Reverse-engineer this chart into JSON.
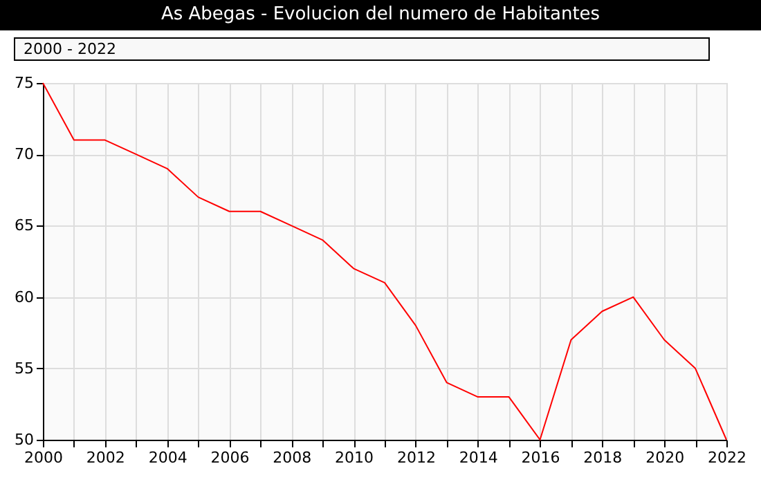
{
  "chart_data": {
    "type": "line",
    "title": "As Abegas - Evolucion del numero de Habitantes",
    "subtitle": "2000 - 2022",
    "x": [
      2000,
      2001,
      2002,
      2003,
      2004,
      2005,
      2006,
      2007,
      2008,
      2009,
      2010,
      2011,
      2012,
      2013,
      2014,
      2015,
      2016,
      2017,
      2018,
      2019,
      2020,
      2021,
      2022
    ],
    "series": [
      {
        "color": "#ff0000",
        "values": [
          75,
          71,
          71,
          70,
          69,
          67,
          66,
          66,
          65,
          64,
          62,
          61,
          58,
          54,
          53,
          53,
          50,
          57,
          59,
          60,
          57,
          55,
          50
        ]
      }
    ],
    "xlim": [
      2000,
      2022
    ],
    "xticks": [
      2000,
      {
        "value": 2001,
        "label": null
      },
      2002,
      {
        "value": 2003,
        "label": null
      },
      2004,
      {
        "value": 2005,
        "label": null
      },
      2006,
      {
        "value": 2007,
        "label": null
      },
      2008,
      {
        "value": 2009,
        "label": null
      },
      2010,
      {
        "value": 2011,
        "label": null
      },
      2012,
      {
        "value": 2013,
        "label": null
      },
      2014,
      {
        "value": 2015,
        "label": null
      },
      2016,
      {
        "value": 2017,
        "label": null
      },
      2018,
      {
        "value": 2019,
        "label": null
      },
      2020,
      {
        "value": 2021,
        "label": null
      },
      2022
    ],
    "ylim": [
      50,
      75
    ],
    "yticks": [
      50,
      55,
      60,
      65,
      70,
      75
    ],
    "grid": true,
    "marker": "none",
    "line_style": "solid"
  }
}
